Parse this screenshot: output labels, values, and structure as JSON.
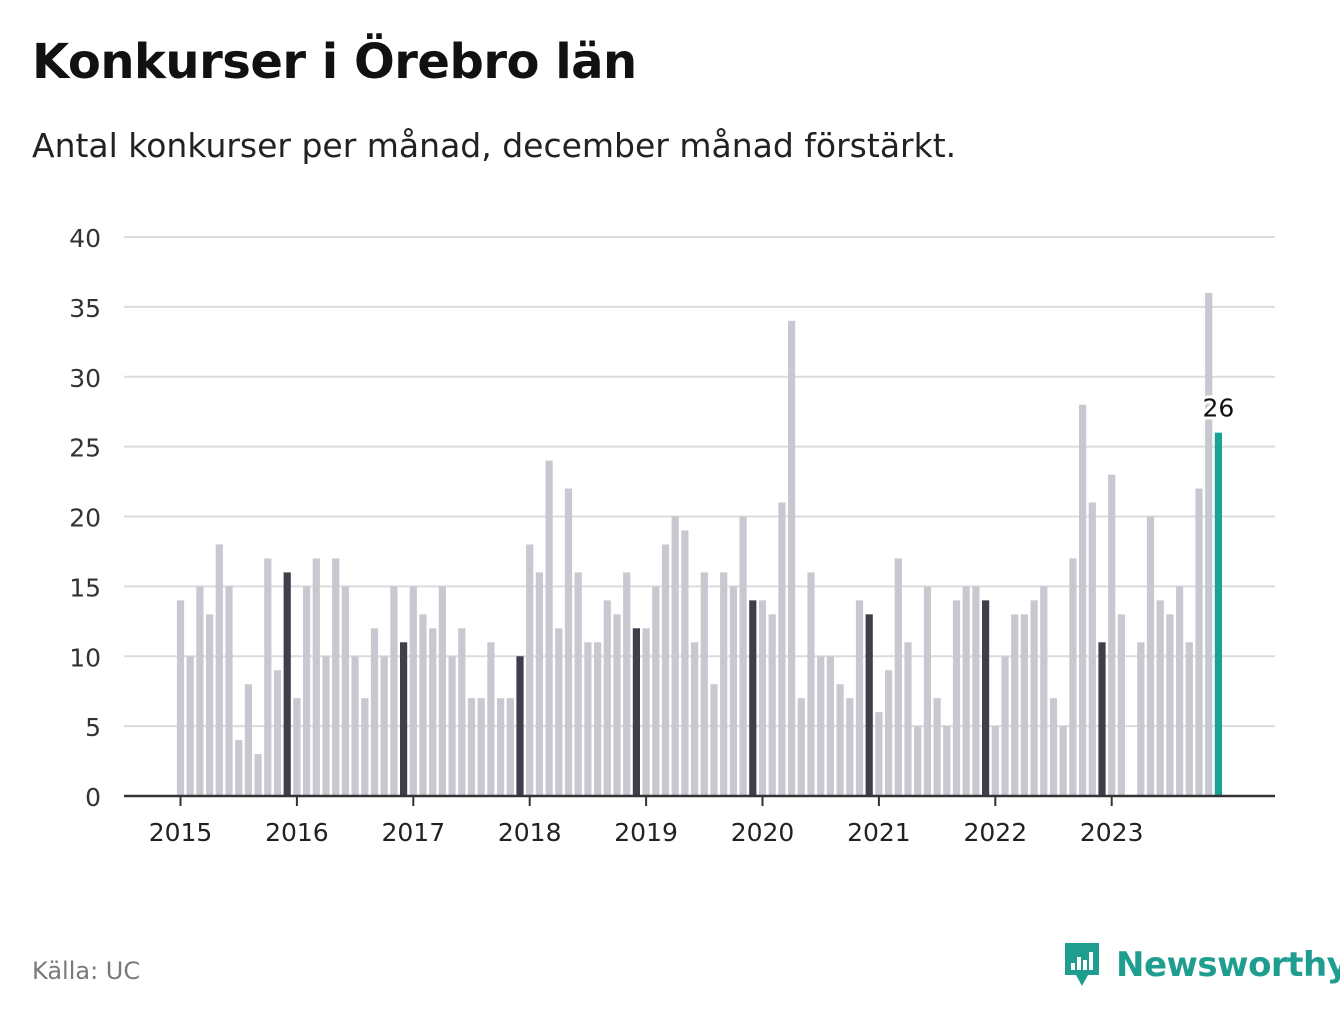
{
  "header": {
    "title": "Konkurser i Örebro län",
    "subtitle": "Antal konkurser per månad, december månad förstärkt."
  },
  "footer": {
    "source": "Källa: UC",
    "brand": "Newsworthy"
  },
  "colors": {
    "bar": "#c8c8d0",
    "december": "#3f3f4b",
    "latest": "#1aa393",
    "grid": "#dcdcdc",
    "axis": "#333333",
    "brand": "#1f9e90"
  },
  "chart_data": {
    "type": "bar",
    "title": "Konkurser i Örebro län",
    "subtitle": "Antal konkurser per månad, december månad förstärkt.",
    "ylim": [
      0,
      40
    ],
    "yticks": [
      "0",
      "5",
      "10",
      "15",
      "20",
      "25",
      "30",
      "35",
      "40"
    ],
    "xticks": [
      "2015",
      "2016",
      "2017",
      "2018",
      "2019",
      "2020",
      "2021",
      "2022",
      "2023"
    ],
    "grid": true,
    "start": "2015-01",
    "end": "2023-12",
    "values": [
      14,
      10,
      15,
      13,
      18,
      15,
      4,
      8,
      3,
      17,
      9,
      16,
      7,
      15,
      17,
      10,
      17,
      15,
      10,
      7,
      12,
      10,
      15,
      11,
      15,
      13,
      12,
      15,
      10,
      12,
      7,
      7,
      11,
      7,
      7,
      10,
      18,
      16,
      24,
      12,
      22,
      16,
      11,
      11,
      14,
      13,
      16,
      12,
      12,
      15,
      18,
      20,
      19,
      11,
      16,
      8,
      16,
      15,
      20,
      14,
      14,
      13,
      21,
      34,
      7,
      16,
      10,
      10,
      8,
      7,
      14,
      13,
      6,
      9,
      17,
      11,
      5,
      15,
      7,
      5,
      14,
      15,
      15,
      14,
      5,
      10,
      13,
      13,
      14,
      15,
      7,
      5,
      17,
      28,
      21,
      11,
      23,
      13,
      0,
      11,
      20,
      14,
      13,
      15,
      11,
      22,
      36,
      26
    ],
    "highlight": "december",
    "latest_label": "26"
  }
}
